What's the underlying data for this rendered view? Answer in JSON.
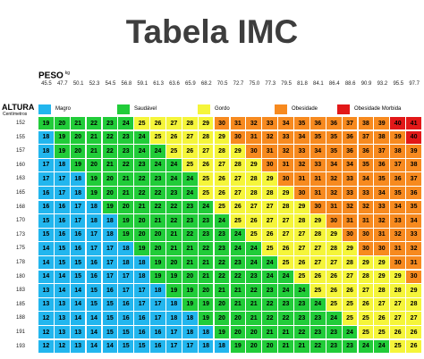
{
  "chart_data": {
    "type": "heatmap",
    "title": "Tabela IMC",
    "x_label": "PESO",
    "x_unit": "kg",
    "y_label": "ALTURA",
    "y_unit": "Centímetros",
    "weights": [
      "45.5",
      "47.7",
      "50.1",
      "52.3",
      "54.5",
      "56.8",
      "59.1",
      "61.3",
      "63.6",
      "65.9",
      "68.2",
      "70.5",
      "72.7",
      "75.0",
      "77.3",
      "79.5",
      "81.8",
      "84.1",
      "86.4",
      "88.6",
      "90.9",
      "93.2",
      "95.5",
      "97.7"
    ],
    "heights": [
      "152",
      "155",
      "157",
      "160",
      "163",
      "165",
      "168",
      "170",
      "173",
      "175",
      "178",
      "180",
      "183",
      "185",
      "188",
      "191",
      "193"
    ],
    "categories": [
      {
        "name": "Magro",
        "max": 18,
        "color": "#22b6ee"
      },
      {
        "name": "Saudável",
        "max": 24,
        "color": "#21cc39"
      },
      {
        "name": "Gordo",
        "max": 29,
        "color": "#f5f53a"
      },
      {
        "name": "Obesidade",
        "max": 39,
        "color": "#f78a1f"
      },
      {
        "name": "Obesidade Mórbida",
        "max": 99,
        "color": "#e21818"
      }
    ],
    "values": [
      [
        19,
        20,
        21,
        22,
        23,
        24,
        25,
        26,
        27,
        28,
        29,
        30,
        31,
        32,
        33,
        34,
        35,
        36,
        36,
        37,
        38,
        39,
        40,
        41
      ],
      [
        18,
        19,
        20,
        21,
        22,
        23,
        24,
        25,
        26,
        27,
        28,
        29,
        30,
        31,
        32,
        33,
        34,
        35,
        35,
        36,
        37,
        38,
        39,
        40
      ],
      [
        18,
        19,
        20,
        21,
        22,
        23,
        24,
        24,
        25,
        26,
        27,
        28,
        29,
        30,
        31,
        32,
        33,
        34,
        35,
        36,
        36,
        37,
        38,
        39
      ],
      [
        17,
        18,
        19,
        20,
        21,
        22,
        23,
        24,
        24,
        25,
        26,
        27,
        28,
        29,
        30,
        31,
        32,
        33,
        34,
        34,
        35,
        36,
        37,
        38
      ],
      [
        17,
        17,
        18,
        19,
        20,
        21,
        22,
        23,
        24,
        24,
        25,
        26,
        27,
        28,
        29,
        30,
        31,
        31,
        32,
        33,
        34,
        35,
        36,
        37
      ],
      [
        16,
        17,
        18,
        19,
        20,
        21,
        22,
        22,
        23,
        24,
        25,
        26,
        27,
        28,
        28,
        29,
        30,
        31,
        32,
        33,
        33,
        34,
        35,
        36
      ],
      [
        16,
        16,
        17,
        18,
        19,
        20,
        21,
        22,
        22,
        23,
        24,
        25,
        26,
        27,
        27,
        28,
        29,
        30,
        31,
        32,
        32,
        33,
        34,
        35
      ],
      [
        15,
        16,
        17,
        18,
        18,
        19,
        20,
        21,
        22,
        23,
        23,
        24,
        25,
        26,
        27,
        27,
        28,
        29,
        30,
        31,
        31,
        32,
        33,
        34
      ],
      [
        15,
        16,
        16,
        17,
        18,
        19,
        20,
        20,
        21,
        22,
        23,
        23,
        24,
        25,
        26,
        27,
        27,
        28,
        29,
        30,
        30,
        31,
        32,
        33
      ],
      [
        14,
        15,
        16,
        17,
        17,
        18,
        19,
        20,
        21,
        21,
        22,
        23,
        24,
        24,
        25,
        26,
        27,
        27,
        28,
        29,
        30,
        30,
        31,
        32
      ],
      [
        14,
        15,
        15,
        16,
        17,
        18,
        18,
        19,
        20,
        21,
        21,
        22,
        23,
        24,
        24,
        25,
        26,
        27,
        27,
        28,
        29,
        29,
        30,
        31
      ],
      [
        14,
        14,
        15,
        16,
        17,
        17,
        18,
        19,
        19,
        20,
        21,
        22,
        22,
        23,
        24,
        24,
        25,
        26,
        26,
        27,
        28,
        29,
        29,
        30
      ],
      [
        13,
        14,
        14,
        15,
        16,
        17,
        17,
        18,
        19,
        19,
        20,
        21,
        21,
        22,
        23,
        24,
        24,
        25,
        26,
        26,
        27,
        28,
        28,
        29
      ],
      [
        13,
        13,
        14,
        15,
        15,
        16,
        17,
        17,
        18,
        19,
        19,
        20,
        21,
        21,
        22,
        23,
        23,
        24,
        25,
        25,
        26,
        27,
        27,
        28
      ],
      [
        12,
        13,
        14,
        14,
        15,
        16,
        16,
        17,
        18,
        18,
        19,
        20,
        20,
        21,
        22,
        22,
        23,
        23,
        24,
        25,
        25,
        26,
        27,
        27
      ],
      [
        12,
        13,
        13,
        14,
        15,
        15,
        16,
        16,
        17,
        18,
        18,
        19,
        20,
        20,
        21,
        21,
        22,
        23,
        23,
        24,
        25,
        25,
        26,
        26
      ],
      [
        12,
        12,
        13,
        14,
        14,
        15,
        15,
        16,
        17,
        17,
        18,
        18,
        19,
        20,
        20,
        21,
        21,
        22,
        23,
        23,
        24,
        24,
        25,
        26
      ]
    ],
    "legend_placement": "top"
  }
}
